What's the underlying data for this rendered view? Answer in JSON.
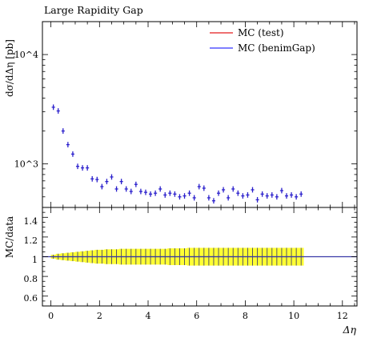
{
  "chart_data": {
    "type": "scatter",
    "title": "Large Rapidity Gap",
    "xlabel": "Δη",
    "ylabel": "dσ/dΔη [pb]",
    "ratio_ylabel": "MC/data",
    "xlim": [
      -0.35,
      12.6
    ],
    "ylim": [
      400,
      20000
    ],
    "ylog": true,
    "ratio_ylim": [
      0.5,
      1.5
    ],
    "x_ticks": [
      "0",
      "2",
      "4",
      "6",
      "8",
      "10",
      "12"
    ],
    "y_ticks": [
      "10^3",
      "10^4"
    ],
    "ratio_ticks": [
      "0.6",
      "0.8",
      "1",
      "1.2",
      "1.4"
    ],
    "legend_position": "top-right",
    "series": [
      {
        "name": "MC (test)",
        "color": "#e41a1c"
      },
      {
        "name": "MC (benimGap)",
        "color": "#3333ff"
      }
    ],
    "x": [
      0.1,
      0.3,
      0.5,
      0.7,
      0.9,
      1.1,
      1.3,
      1.5,
      1.7,
      1.9,
      2.1,
      2.3,
      2.5,
      2.7,
      2.9,
      3.1,
      3.3,
      3.5,
      3.7,
      3.9,
      4.1,
      4.3,
      4.5,
      4.7,
      4.9,
      5.1,
      5.3,
      5.5,
      5.7,
      5.9,
      6.1,
      6.3,
      6.5,
      6.7,
      6.9,
      7.1,
      7.3,
      7.5,
      7.7,
      7.9,
      8.1,
      8.3,
      8.5,
      8.7,
      8.9,
      9.1,
      9.3,
      9.5,
      9.7,
      9.9,
      10.1,
      10.3
    ],
    "values": [
      3300,
      3050,
      2000,
      1500,
      1230,
      950,
      920,
      920,
      730,
      720,
      620,
      690,
      760,
      590,
      690,
      590,
      560,
      650,
      560,
      550,
      530,
      540,
      590,
      520,
      540,
      530,
      500,
      510,
      540,
      490,
      620,
      600,
      490,
      460,
      540,
      580,
      490,
      590,
      540,
      510,
      520,
      580,
      470,
      530,
      510,
      520,
      500,
      570,
      510,
      520,
      500,
      530
    ],
    "ratio_band_half_width": [
      0.02,
      0.03,
      0.035,
      0.04,
      0.045,
      0.05,
      0.055,
      0.06,
      0.065,
      0.07,
      0.07,
      0.075,
      0.075,
      0.075,
      0.08,
      0.08,
      0.08,
      0.08,
      0.08,
      0.08,
      0.08,
      0.08,
      0.08,
      0.08,
      0.085,
      0.085,
      0.085,
      0.085,
      0.09,
      0.09,
      0.09,
      0.09,
      0.09,
      0.09,
      0.09,
      0.09,
      0.09,
      0.09,
      0.09,
      0.09,
      0.09,
      0.09,
      0.09,
      0.09,
      0.09,
      0.09,
      0.09,
      0.09,
      0.09,
      0.09,
      0.09,
      0.09
    ]
  },
  "colors": {
    "points": "#2a1fcc",
    "band": "#ffff33",
    "ratio_line": "#3a3aa8"
  }
}
